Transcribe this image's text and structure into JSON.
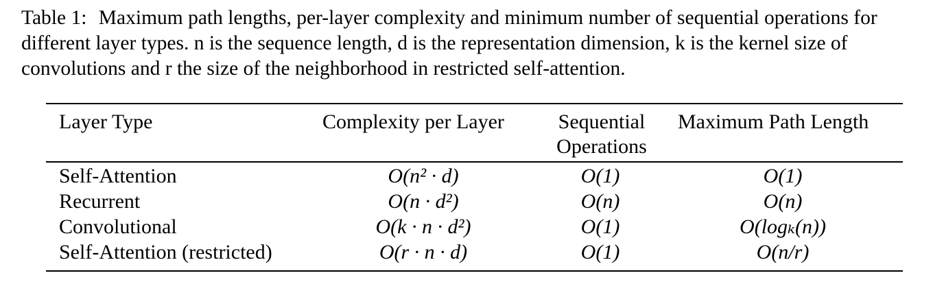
{
  "caption": {
    "lead": "Table 1:",
    "text": "Maximum path lengths, per-layer complexity and minimum number of sequential operations for different layer types. n is the sequence length, d is the representation dimension, k is the kernel size of convolutions and r the size of the neighborhood in restricted self-attention."
  },
  "table": {
    "headers": {
      "layer_type": "Layer Type",
      "complexity": "Complexity per Layer",
      "sequential_line1": "Sequential",
      "sequential_line2": "Operations",
      "max_path": "Maximum Path Length"
    },
    "rows": [
      {
        "layer": "Self-Attention",
        "complexity": "O(n² · d)",
        "sequential": "O(1)",
        "max_path": "O(1)"
      },
      {
        "layer": "Recurrent",
        "complexity": "O(n · d²)",
        "sequential": "O(n)",
        "max_path": "O(n)"
      },
      {
        "layer": "Convolutional",
        "complexity": "O(k · n · d²)",
        "sequential": "O(1)",
        "max_path": "O(logₖ(n))"
      },
      {
        "layer": "Self-Attention (restricted)",
        "complexity": "O(r · n · d)",
        "sequential": "O(1)",
        "max_path": "O(n/r)"
      }
    ]
  }
}
